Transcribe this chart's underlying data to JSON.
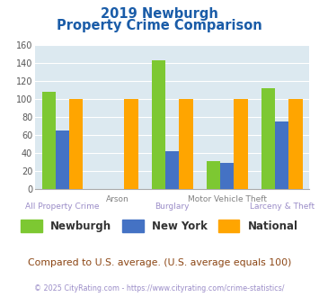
{
  "title_line1": "2019 Newburgh",
  "title_line2": "Property Crime Comparison",
  "categories_row1": [
    "All Property Crime",
    "",
    "Burglary",
    "",
    "Larceny & Theft"
  ],
  "categories_row2": [
    "",
    "Arson",
    "",
    "Motor Vehicle Theft",
    ""
  ],
  "categories": [
    "All Property Crime",
    "Arson",
    "Burglary",
    "Motor Vehicle Theft",
    "Larceny & Theft"
  ],
  "series": {
    "Newburgh": [
      108,
      0,
      143,
      31,
      112
    ],
    "New York": [
      65,
      0,
      42,
      29,
      75
    ],
    "National": [
      100,
      100,
      100,
      100,
      100
    ]
  },
  "colors": {
    "Newburgh": "#7dc832",
    "New York": "#4472c4",
    "National": "#ffa500"
  },
  "ylim": [
    0,
    160
  ],
  "yticks": [
    0,
    20,
    40,
    60,
    80,
    100,
    120,
    140,
    160
  ],
  "bg_color": "#dce9f0",
  "title_color": "#1a5ca8",
  "xlabel_color_row1": "#9b8dc8",
  "xlabel_color_row2": "#808080",
  "note_text": "Compared to U.S. average. (U.S. average equals 100)",
  "note_color": "#8b4513",
  "copyright_text": "© 2025 CityRating.com - https://www.cityrating.com/crime-statistics/",
  "copyright_color": "#9b8dc8",
  "bar_width": 0.25,
  "grid_color": "#ffffff"
}
